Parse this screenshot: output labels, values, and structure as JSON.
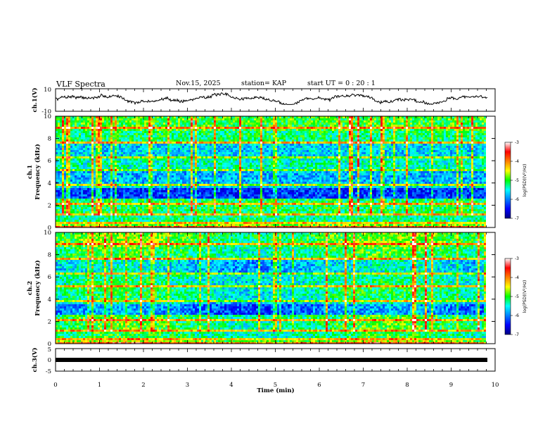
{
  "header": {
    "title": "VLF Spectra",
    "date": "Nov.15, 2025",
    "station": "station= KAP",
    "start_ut": "start  UT =   0  : 20 : 1"
  },
  "chart_data": [
    {
      "type": "line",
      "panel": "waveform-ch1",
      "ylabel": "ch.1(V)",
      "ylim": [
        -10,
        10
      ],
      "yticks": [
        "10",
        "-10"
      ],
      "xlim": [
        0,
        9.85
      ],
      "description_values": "noisy oscillating voltage trace mostly between -3 and +6 V"
    },
    {
      "type": "heatmap",
      "panel": "spectrogram-ch1",
      "ylabel": "ch.1\nFrequency (kHz)",
      "ylim": [
        0,
        10
      ],
      "yticks": [
        "0",
        "2",
        "4",
        "6",
        "8",
        "10"
      ],
      "xlim": [
        0,
        9.85
      ],
      "colorbar": {
        "label": "log(PSD)(V²/Hz)",
        "range": [
          -7,
          -3
        ],
        "ticks": [
          "-3",
          "-4",
          "-5",
          "-6",
          "-7"
        ]
      },
      "seed": 11
    },
    {
      "type": "heatmap",
      "panel": "spectrogram-ch2",
      "ylabel": "ch.2\nFrequency (kHz)",
      "ylim": [
        0,
        10
      ],
      "yticks": [
        "0",
        "2",
        "4",
        "6",
        "8",
        "10"
      ],
      "xlim": [
        0,
        9.85
      ],
      "colorbar": {
        "label": "log(PSD)(V²/Hz)",
        "range": [
          -7,
          -3
        ],
        "ticks": [
          "-3",
          "-4",
          "-5",
          "-6",
          "-7"
        ]
      },
      "seed": 29
    },
    {
      "type": "line",
      "panel": "waveform-ch3",
      "ylabel": "ch.3(V)",
      "ylim": [
        -5,
        5
      ],
      "yticks": [
        "5",
        "0",
        "-5"
      ],
      "xlim": [
        0,
        9.85
      ],
      "description_values": "dense oscillation filling approx -0.5 to +0.5 V"
    }
  ],
  "xaxis": {
    "label": "Time (min)",
    "ticks": [
      "0",
      "1",
      "2",
      "3",
      "4",
      "5",
      "6",
      "7",
      "8",
      "9",
      "10"
    ],
    "range": [
      0,
      10
    ]
  },
  "colors": {
    "axis": "#000000",
    "background": "#ffffff"
  }
}
